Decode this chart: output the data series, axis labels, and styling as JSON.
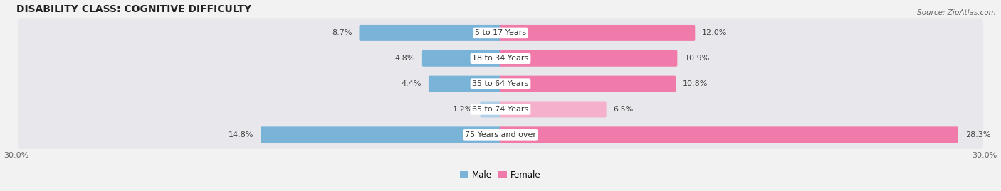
{
  "title": "DISABILITY CLASS: COGNITIVE DIFFICULTY",
  "source": "Source: ZipAtlas.com",
  "categories": [
    "5 to 17 Years",
    "18 to 34 Years",
    "35 to 64 Years",
    "65 to 74 Years",
    "75 Years and over"
  ],
  "male_values": [
    8.7,
    4.8,
    4.4,
    1.2,
    14.8
  ],
  "female_values": [
    12.0,
    10.9,
    10.8,
    6.5,
    28.3
  ],
  "xlim": 30.0,
  "male_color": "#7ab3d8",
  "female_color": "#f07aaa",
  "male_color_light": "#afd0e8",
  "female_color_light": "#f5b0cc",
  "male_label": "Male",
  "female_label": "Female",
  "bg_color": "#f2f2f2",
  "row_color": "#e8e8ec",
  "title_fontsize": 10,
  "label_fontsize": 8,
  "tick_fontsize": 8,
  "source_fontsize": 7.5
}
